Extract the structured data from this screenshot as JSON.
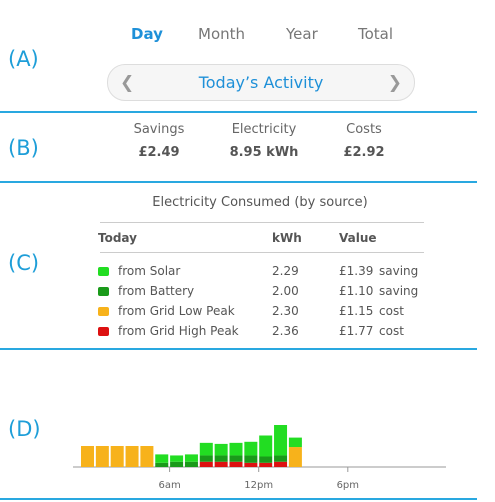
{
  "sections": {
    "a": "(A)",
    "b": "(B)",
    "c": "(C)",
    "d": "(D)"
  },
  "tabs": [
    {
      "label": "Day",
      "active": true
    },
    {
      "label": "Month",
      "active": false
    },
    {
      "label": "Year",
      "active": false
    },
    {
      "label": "Total",
      "active": false
    }
  ],
  "navigator": {
    "title": "Today’s Activity",
    "prev_icon": "chevron-left-icon",
    "next_icon": "chevron-right-icon"
  },
  "summary": {
    "savings": {
      "label": "Savings",
      "value": "£2.49"
    },
    "electricity": {
      "label": "Electricity",
      "value": "8.95 kWh"
    },
    "costs": {
      "label": "Costs",
      "value": "£2.92"
    }
  },
  "breakdown": {
    "title": "Electricity Consumed (by source)",
    "headers": {
      "source": "Today",
      "kwh": "kWh",
      "value": "Value"
    },
    "rows": [
      {
        "source": "from Solar",
        "kwh": "2.29",
        "value": "£1.39",
        "note": "saving",
        "color": "#22dd22"
      },
      {
        "source": "from Battery",
        "kwh": "2.00",
        "value": "£1.10",
        "note": "saving",
        "color": "#1a9a1a"
      },
      {
        "source": "from Grid Low Peak",
        "kwh": "2.30",
        "value": "£1.15",
        "note": "cost",
        "color": "#f7b21b"
      },
      {
        "source": "from Grid High Peak",
        "kwh": "2.36",
        "value": "£1.77",
        "note": "cost",
        "color": "#dd1111"
      }
    ]
  },
  "chart_data": {
    "type": "bar",
    "stacked": true,
    "x_ticks": [
      "6am",
      "12pm",
      "6pm"
    ],
    "colors": {
      "solar": "#22dd22",
      "battery": "#1a9a1a",
      "low": "#f7b21b",
      "high": "#dd1111"
    },
    "bars": [
      {
        "low": 1.0
      },
      {
        "low": 1.0
      },
      {
        "low": 1.0
      },
      {
        "low": 1.0
      },
      {
        "low": 1.0
      },
      {
        "solar": 0.4,
        "battery": 0.2
      },
      {
        "solar": 0.3,
        "battery": 0.25
      },
      {
        "solar": 0.35,
        "battery": 0.25
      },
      {
        "solar": 0.6,
        "battery": 0.3,
        "high": 0.25
      },
      {
        "solar": 0.55,
        "battery": 0.3,
        "high": 0.25
      },
      {
        "solar": 0.6,
        "battery": 0.3,
        "high": 0.25
      },
      {
        "solar": 0.65,
        "battery": 0.35,
        "high": 0.2
      },
      {
        "solar": 1.0,
        "battery": 0.3,
        "high": 0.2
      },
      {
        "solar": 1.45,
        "battery": 0.3,
        "high": 0.25
      },
      {
        "low": 0.95,
        "solar": 0.45
      }
    ],
    "bar_start_hour": 0,
    "hours_per_bar": 1
  }
}
